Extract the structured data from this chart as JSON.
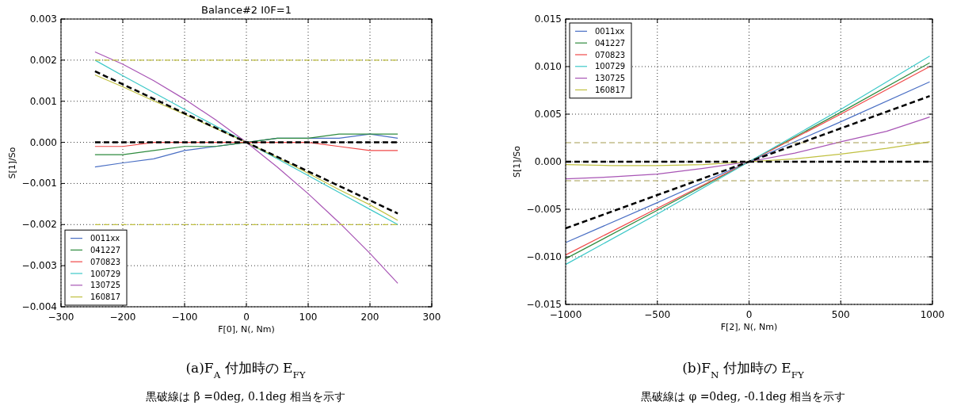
{
  "chart_data": [
    {
      "type": "line",
      "title": "Balance#2  I0F=1",
      "xlabel": "F[0], N(, Nm)",
      "ylabel": "S[1]/So",
      "xlim": [
        -300,
        300
      ],
      "xticks": [
        {
          "value": -300,
          "label": "−300"
        },
        {
          "value": -200,
          "label": "−200"
        },
        {
          "value": -100,
          "label": "−100"
        },
        0,
        100,
        200,
        300
      ],
      "ylim": [
        -0.004,
        0.003
      ],
      "yticks": [
        {
          "value": -0.004,
          "label": "−0.004"
        },
        {
          "value": -0.003,
          "label": "−0.003"
        },
        {
          "value": -0.002,
          "label": "−0.002"
        },
        {
          "value": -0.001,
          "label": "−0.001"
        },
        {
          "value": 0,
          "label": "0.000"
        },
        0.001,
        0.002,
        0.003
      ],
      "grid": true,
      "legend": "bottom left",
      "marker": "none",
      "series": [
        {
          "name": "0011xx",
          "color": "#4a6fc4",
          "x": [
            -245,
            -200,
            -150,
            -100,
            -50,
            0,
            50,
            100,
            150,
            200,
            245
          ],
          "values": [
            -0.0006,
            -0.0005,
            -0.0004,
            -0.0002,
            -0.0001,
            0,
            0.0001,
            0.0001,
            0.0001,
            0.0002,
            0.0001
          ]
        },
        {
          "name": "041227",
          "color": "#2e8b3e",
          "x": [
            -245,
            -200,
            -150,
            -100,
            -50,
            0,
            50,
            100,
            150,
            200,
            245
          ],
          "values": [
            -0.0003,
            -0.0003,
            -0.0002,
            -0.0001,
            -0.0001,
            0,
            0.0001,
            0.0001,
            0.0002,
            0.0002,
            0.0002
          ]
        },
        {
          "name": "070823",
          "color": "#f04848",
          "x": [
            -245,
            -200,
            -150,
            -100,
            -50,
            0,
            50,
            100,
            150,
            200,
            245
          ],
          "values": [
            -0.0001,
            -0.0001,
            0,
            0,
            0,
            0,
            0,
            0,
            -0.0001,
            -0.0002,
            -0.0002
          ]
        },
        {
          "name": "100729",
          "color": "#3cc8c8",
          "x": [
            -245,
            -200,
            -150,
            -100,
            -50,
            0,
            50,
            100,
            150,
            200,
            245
          ],
          "values": [
            0.002,
            0.00162,
            0.00121,
            0.0008,
            0.0004,
            0,
            -0.0004,
            -0.00081,
            -0.00122,
            -0.00163,
            -0.002
          ]
        },
        {
          "name": "130725",
          "color": "#a855b5",
          "x": [
            -245,
            -200,
            -150,
            -100,
            -50,
            0,
            50,
            100,
            150,
            200,
            245
          ],
          "values": [
            0.0022,
            0.0019,
            0.0015,
            0.00105,
            0.00055,
            0,
            -0.0006,
            -0.00125,
            -0.00195,
            -0.0027,
            -0.00343
          ]
        },
        {
          "name": "160817",
          "color": "#c0c040",
          "x": [
            -245,
            -200,
            -150,
            -100,
            -50,
            0,
            50,
            100,
            150,
            200,
            245
          ],
          "values": [
            0.00164,
            0.00135,
            0.00101,
            0.00068,
            0.00034,
            0,
            -0.00037,
            -0.00075,
            -0.00115,
            -0.00152,
            -0.0019
          ]
        },
        {
          "color": "#c0c040",
          "line_style": "dashed",
          "x": [
            -245,
            245
          ],
          "values": [
            0.002,
            0.002
          ]
        },
        {
          "color": "#c0c040",
          "line_style": "dashed",
          "x": [
            -245,
            245
          ],
          "values": [
            -0.002,
            -0.002
          ]
        },
        {
          "color": "#000000",
          "line_style": "dashed",
          "x": [
            -245,
            245
          ],
          "values": [
            0.00173,
            -0.00173
          ]
        },
        {
          "color": "#000000",
          "line_style": "dashed",
          "x": [
            -245,
            245
          ],
          "values": [
            0,
            0
          ]
        }
      ],
      "annotations": [
        "(a)F$_{A}$ 付加時の E$_{FY}$",
        "黒破線は β =0deg, 0.1deg 相当を示す"
      ]
    },
    {
      "type": "line",
      "xlabel": "F[2], N(, Nm)",
      "ylabel": "S[1]/So",
      "xlim": [
        -1000,
        1000
      ],
      "xticks": [
        {
          "value": -1000,
          "label": "−1000"
        },
        {
          "value": -500,
          "label": "−500"
        },
        0,
        500,
        1000
      ],
      "ylim": [
        -0.015,
        0.015
      ],
      "yticks": [
        {
          "value": -0.015,
          "label": "−0.015"
        },
        {
          "value": -0.01,
          "label": "−0.010"
        },
        {
          "value": -0.005,
          "label": "−0.005"
        },
        {
          "value": 0,
          "label": "0.000"
        },
        0.005,
        {
          "value": 0.01,
          "label": "0.010"
        },
        0.015
      ],
      "grid": true,
      "legend": "top left",
      "marker": "none",
      "series": [
        {
          "name": "0011xx",
          "color": "#4a6fc4",
          "x": [
            -1000,
            -500,
            0,
            500,
            985
          ],
          "values": [
            -0.0085,
            -0.0043,
            0,
            0.0042,
            0.0084
          ]
        },
        {
          "name": "041227",
          "color": "#2e8b3e",
          "x": [
            -1000,
            -500,
            0,
            500,
            985
          ],
          "values": [
            -0.0102,
            -0.0051,
            0,
            0.0052,
            0.0104
          ]
        },
        {
          "name": "070823",
          "color": "#f04848",
          "x": [
            -1000,
            -500,
            0,
            500,
            985
          ],
          "values": [
            -0.0098,
            -0.0049,
            0,
            0.005,
            0.01
          ]
        },
        {
          "name": "100729",
          "color": "#3cc8c8",
          "x": [
            -1000,
            -500,
            0,
            500,
            985
          ],
          "values": [
            -0.0108,
            -0.0055,
            0,
            0.0055,
            0.0111
          ]
        },
        {
          "name": "130725",
          "color": "#a855b5",
          "x": [
            -1000,
            -750,
            -500,
            -250,
            0,
            250,
            500,
            750,
            985
          ],
          "values": [
            -0.0018,
            -0.0016,
            -0.0013,
            -0.0007,
            0,
            0.0009,
            0.0021,
            0.0032,
            0.0047
          ]
        },
        {
          "name": "160817",
          "color": "#c0c040",
          "x": [
            -1000,
            -750,
            -500,
            -250,
            0,
            250,
            500,
            750,
            985
          ],
          "values": [
            -0.0003,
            -0.0004,
            -0.0004,
            -0.0003,
            0,
            0.0003,
            0.0008,
            0.0014,
            0.0021
          ]
        },
        {
          "color": "#a39b4f",
          "line_style": "dashed",
          "x": [
            -1000,
            985
          ],
          "values": [
            0.002,
            0.002
          ]
        },
        {
          "color": "#a39b4f",
          "line_style": "dashed",
          "x": [
            -1000,
            985
          ],
          "values": [
            -0.002,
            -0.002
          ]
        },
        {
          "color": "#000000",
          "line_style": "dashed",
          "x": [
            -1000,
            985
          ],
          "values": [
            -0.007,
            0.0069
          ]
        },
        {
          "color": "#000000",
          "line_style": "dashed",
          "x": [
            -1000,
            985
          ],
          "values": [
            0,
            0
          ]
        }
      ],
      "annotations": [
        "(b)F$_{N}$ 付加時の E$_{FY}$",
        "黒破線は φ =0deg, -0.1deg 相当を示す"
      ]
    }
  ]
}
